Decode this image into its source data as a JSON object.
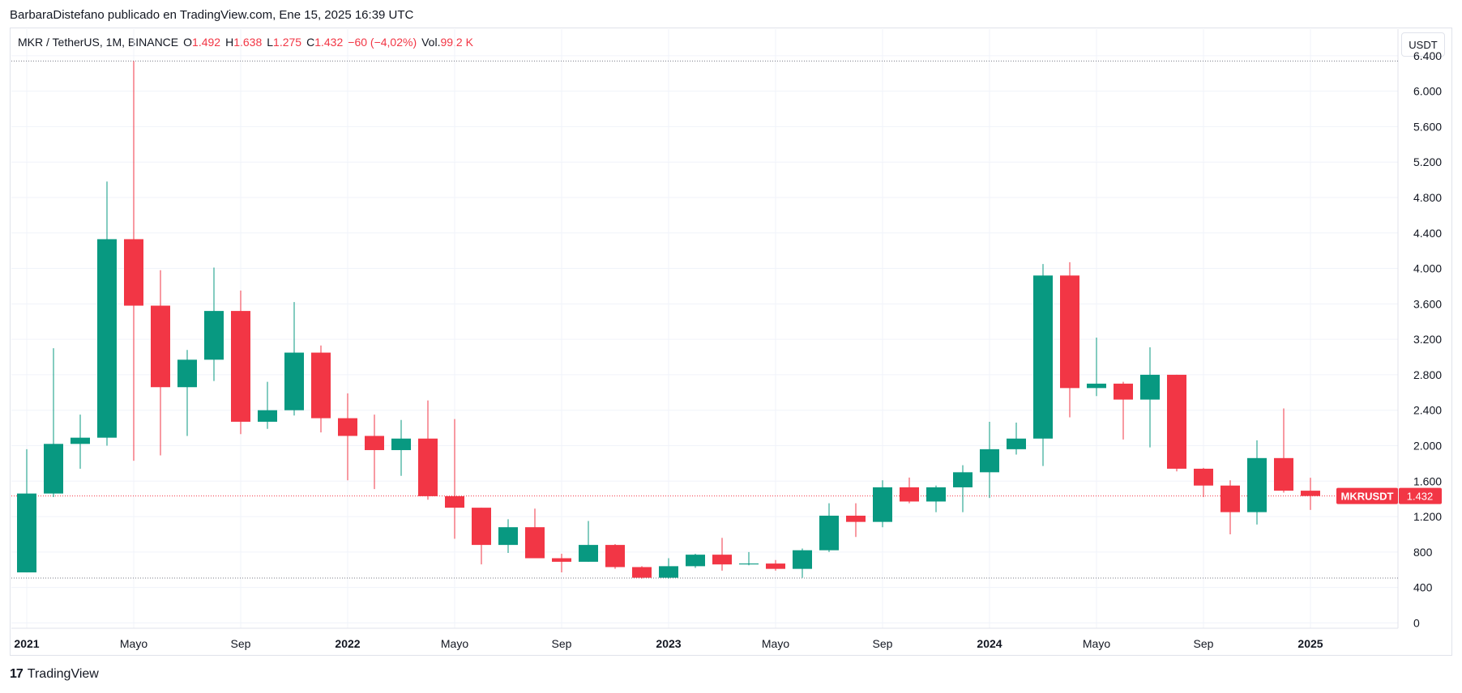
{
  "header": {
    "published": "BarbaraDistefano publicado en TradingView.com, Ene 15, 2025 16:39 UTC"
  },
  "legend": {
    "symbol": "MKR / TetherUS, 1M, BINANCE",
    "o_label": "O",
    "o_value": "1.492",
    "h_label": "H",
    "h_value": "1.638",
    "l_label": "L",
    "l_value": "1.275",
    "c_label": "C",
    "c_value": "1.432",
    "change": "−60 (−4,02%)",
    "vol_label": "Vol.",
    "vol_value": "99,2 K"
  },
  "currency_button": "USDT",
  "footer": {
    "logo_mark": "17",
    "logo_text": "TradingView"
  },
  "colors": {
    "up": "#089981",
    "down": "#f23645",
    "grid": "#f0f3fa",
    "axis_text": "#131722",
    "price_label_bg": "#f23645"
  },
  "chart_data": {
    "type": "candlestick",
    "symbol_label": "MKRUSDT",
    "last_price_label": "1.432",
    "last_price": 1432,
    "ylim": [
      -60,
      6700
    ],
    "yticks": [
      0,
      400,
      800,
      1200,
      1600,
      2000,
      2400,
      2800,
      3200,
      3600,
      4000,
      4400,
      4800,
      5200,
      5600,
      6000,
      6400
    ],
    "ytick_labels": [
      "0",
      "400",
      "800",
      "1.200",
      "1.600",
      "2.000",
      "2.400",
      "2.800",
      "3.200",
      "3.600",
      "4.000",
      "4.400",
      "4.800",
      "5.200",
      "5.600",
      "6.000",
      "6.400"
    ],
    "dotted_levels": [
      6340,
      506
    ],
    "xticks": [
      {
        "index": 0,
        "label": "2021",
        "bold": true
      },
      {
        "index": 4,
        "label": "Mayo",
        "bold": false
      },
      {
        "index": 8,
        "label": "Sep",
        "bold": false
      },
      {
        "index": 12,
        "label": "2022",
        "bold": true
      },
      {
        "index": 16,
        "label": "Mayo",
        "bold": false
      },
      {
        "index": 20,
        "label": "Sep",
        "bold": false
      },
      {
        "index": 24,
        "label": "2023",
        "bold": true
      },
      {
        "index": 28,
        "label": "Mayo",
        "bold": false
      },
      {
        "index": 32,
        "label": "Sep",
        "bold": false
      },
      {
        "index": 36,
        "label": "2024",
        "bold": true
      },
      {
        "index": 40,
        "label": "Mayo",
        "bold": false
      },
      {
        "index": 44,
        "label": "Sep",
        "bold": false
      },
      {
        "index": 48,
        "label": "2025",
        "bold": true
      }
    ],
    "candles": [
      {
        "t": "2021-01",
        "o": 570,
        "h": 1960,
        "l": 570,
        "c": 1460
      },
      {
        "t": "2021-02",
        "o": 1460,
        "h": 3100,
        "l": 1420,
        "c": 2020
      },
      {
        "t": "2021-03",
        "o": 2020,
        "h": 2350,
        "l": 1740,
        "c": 2090
      },
      {
        "t": "2021-04",
        "o": 2090,
        "h": 4980,
        "l": 2000,
        "c": 4330
      },
      {
        "t": "2021-05",
        "o": 4330,
        "h": 6340,
        "l": 1830,
        "c": 3580
      },
      {
        "t": "2021-06",
        "o": 3580,
        "h": 3980,
        "l": 1890,
        "c": 2660
      },
      {
        "t": "2021-07",
        "o": 2660,
        "h": 3080,
        "l": 2110,
        "c": 2970
      },
      {
        "t": "2021-08",
        "o": 2970,
        "h": 4010,
        "l": 2730,
        "c": 3520
      },
      {
        "t": "2021-09",
        "o": 3520,
        "h": 3750,
        "l": 2130,
        "c": 2270
      },
      {
        "t": "2021-10",
        "o": 2270,
        "h": 2720,
        "l": 2190,
        "c": 2400
      },
      {
        "t": "2021-11",
        "o": 2400,
        "h": 3620,
        "l": 2340,
        "c": 3050
      },
      {
        "t": "2021-12",
        "o": 3050,
        "h": 3130,
        "l": 2150,
        "c": 2310
      },
      {
        "t": "2022-01",
        "o": 2310,
        "h": 2590,
        "l": 1610,
        "c": 2110
      },
      {
        "t": "2022-02",
        "o": 2110,
        "h": 2350,
        "l": 1510,
        "c": 1950
      },
      {
        "t": "2022-03",
        "o": 1950,
        "h": 2290,
        "l": 1660,
        "c": 2080
      },
      {
        "t": "2022-04",
        "o": 2080,
        "h": 2510,
        "l": 1390,
        "c": 1430
      },
      {
        "t": "2022-05",
        "o": 1430,
        "h": 2300,
        "l": 950,
        "c": 1300
      },
      {
        "t": "2022-06",
        "o": 1300,
        "h": 1300,
        "l": 660,
        "c": 880
      },
      {
        "t": "2022-07",
        "o": 880,
        "h": 1170,
        "l": 790,
        "c": 1080
      },
      {
        "t": "2022-08",
        "o": 1080,
        "h": 1290,
        "l": 730,
        "c": 730
      },
      {
        "t": "2022-09",
        "o": 730,
        "h": 780,
        "l": 570,
        "c": 690
      },
      {
        "t": "2022-10",
        "o": 690,
        "h": 1150,
        "l": 690,
        "c": 880
      },
      {
        "t": "2022-11",
        "o": 880,
        "h": 890,
        "l": 610,
        "c": 630
      },
      {
        "t": "2022-12",
        "o": 630,
        "h": 640,
        "l": 500,
        "c": 510
      },
      {
        "t": "2023-01",
        "o": 510,
        "h": 730,
        "l": 500,
        "c": 640
      },
      {
        "t": "2023-02",
        "o": 640,
        "h": 780,
        "l": 620,
        "c": 770
      },
      {
        "t": "2023-03",
        "o": 770,
        "h": 960,
        "l": 590,
        "c": 660
      },
      {
        "t": "2023-04",
        "o": 660,
        "h": 800,
        "l": 650,
        "c": 670
      },
      {
        "t": "2023-05",
        "o": 670,
        "h": 710,
        "l": 590,
        "c": 610
      },
      {
        "t": "2023-06",
        "o": 610,
        "h": 840,
        "l": 510,
        "c": 820
      },
      {
        "t": "2023-07",
        "o": 820,
        "h": 1350,
        "l": 800,
        "c": 1210
      },
      {
        "t": "2023-08",
        "o": 1210,
        "h": 1350,
        "l": 970,
        "c": 1140
      },
      {
        "t": "2023-09",
        "o": 1140,
        "h": 1610,
        "l": 1080,
        "c": 1530
      },
      {
        "t": "2023-10",
        "o": 1530,
        "h": 1640,
        "l": 1350,
        "c": 1370
      },
      {
        "t": "2023-11",
        "o": 1370,
        "h": 1550,
        "l": 1250,
        "c": 1530
      },
      {
        "t": "2023-12",
        "o": 1530,
        "h": 1780,
        "l": 1250,
        "c": 1700
      },
      {
        "t": "2024-01",
        "o": 1700,
        "h": 2270,
        "l": 1410,
        "c": 1960
      },
      {
        "t": "2024-02",
        "o": 1960,
        "h": 2260,
        "l": 1900,
        "c": 2080
      },
      {
        "t": "2024-03",
        "o": 2080,
        "h": 4050,
        "l": 1770,
        "c": 3920
      },
      {
        "t": "2024-04",
        "o": 3920,
        "h": 4070,
        "l": 2320,
        "c": 2650
      },
      {
        "t": "2024-05",
        "o": 2650,
        "h": 3220,
        "l": 2560,
        "c": 2700
      },
      {
        "t": "2024-06",
        "o": 2700,
        "h": 2720,
        "l": 2070,
        "c": 2520
      },
      {
        "t": "2024-07",
        "o": 2520,
        "h": 3110,
        "l": 1980,
        "c": 2800
      },
      {
        "t": "2024-08",
        "o": 2800,
        "h": 2800,
        "l": 1710,
        "c": 1740
      },
      {
        "t": "2024-09",
        "o": 1740,
        "h": 1750,
        "l": 1420,
        "c": 1550
      },
      {
        "t": "2024-10",
        "o": 1550,
        "h": 1610,
        "l": 1000,
        "c": 1250
      },
      {
        "t": "2024-11",
        "o": 1250,
        "h": 2060,
        "l": 1110,
        "c": 1860
      },
      {
        "t": "2024-12",
        "o": 1860,
        "h": 2420,
        "l": 1470,
        "c": 1492
      },
      {
        "t": "2025-01",
        "o": 1492,
        "h": 1638,
        "l": 1275,
        "c": 1432
      }
    ]
  }
}
